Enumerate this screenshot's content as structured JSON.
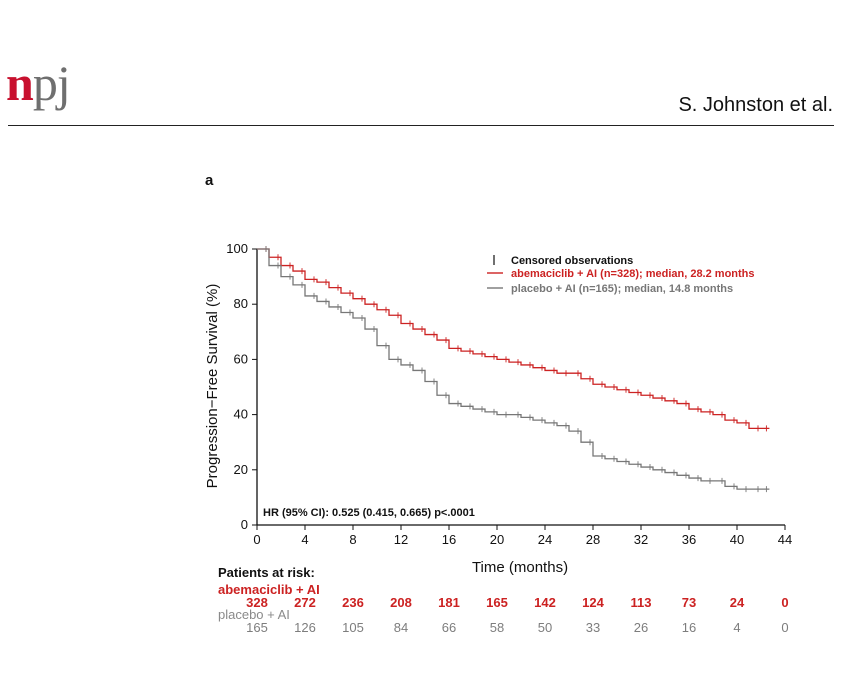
{
  "header": {
    "logo_n": "n",
    "logo_pj": "pj",
    "authors": "S. Johnston et al."
  },
  "panel_label": "a",
  "chart_data": {
    "type": "line",
    "title": "",
    "xlabel": "Time (months)",
    "ylabel": "Progression−Free Survival (%)",
    "xlim": [
      0,
      44
    ],
    "ylim": [
      0,
      100
    ],
    "xticks": [
      0,
      4,
      8,
      12,
      16,
      20,
      24,
      28,
      32,
      36,
      40,
      44
    ],
    "yticks": [
      0,
      20,
      40,
      60,
      80,
      100
    ],
    "grid": false,
    "legend_placement": "top-right",
    "legend": {
      "censor_label": "Censored observations"
    },
    "annotation": "HR (95% CI): 0.525 (0.415, 0.665) p<.0001",
    "series": [
      {
        "name": "abemaciclib + AI (n=328); median, 28.2 months",
        "color": "#cc2222",
        "x": [
          0,
          1,
          2,
          3,
          4,
          5,
          6,
          7,
          8,
          9,
          10,
          11,
          12,
          13,
          14,
          15,
          16,
          17,
          18,
          19,
          20,
          21,
          22,
          23,
          24,
          25,
          26,
          27,
          28,
          29,
          30,
          31,
          32,
          33,
          34,
          35,
          36,
          37,
          38,
          39,
          40,
          41,
          42,
          42.7
        ],
        "y": [
          100,
          97,
          94,
          92,
          89,
          88,
          86,
          84,
          82,
          80,
          78,
          76,
          73,
          71,
          69,
          67,
          64,
          63,
          62,
          61,
          60,
          59,
          58,
          57,
          56,
          55,
          55,
          53,
          51,
          50,
          49,
          48,
          47,
          46,
          45,
          44,
          42,
          41,
          40,
          38,
          37,
          35,
          35,
          35
        ]
      },
      {
        "name": "placebo + AI (n=165); median, 14.8 months",
        "color": "#777777",
        "x": [
          0,
          1,
          2,
          3,
          4,
          5,
          6,
          7,
          8,
          9,
          10,
          11,
          12,
          13,
          14,
          15,
          16,
          17,
          18,
          19,
          20,
          21,
          22,
          23,
          24,
          25,
          26,
          27,
          28,
          29,
          30,
          31,
          32,
          33,
          34,
          35,
          36,
          37,
          38,
          39,
          40,
          41,
          42,
          42.7
        ],
        "y": [
          100,
          94,
          90,
          87,
          83,
          81,
          79,
          77,
          75,
          71,
          65,
          60,
          58,
          56,
          52,
          47,
          44,
          43,
          42,
          41,
          40,
          40,
          39,
          38,
          37,
          36,
          34,
          30,
          25,
          24,
          23,
          22,
          21,
          20,
          19,
          18,
          17,
          16,
          16,
          14,
          13,
          13,
          13,
          13
        ]
      }
    ],
    "risk_table": {
      "title": "Patients at risk:",
      "timepoints": [
        0,
        4,
        8,
        12,
        16,
        20,
        24,
        28,
        32,
        36,
        40,
        44
      ],
      "arms": [
        {
          "label": "abemaciclib + AI",
          "color": "#cc2222",
          "counts": [
            "328",
            "272",
            "236",
            "208",
            "181",
            "165",
            "142",
            "124",
            "113",
            "73",
            "24",
            "0"
          ]
        },
        {
          "label": "placebo + AI",
          "color": "#7d7d7d",
          "counts": [
            "165",
            "126",
            "105",
            "84",
            "66",
            "58",
            "50",
            "33",
            "26",
            "16",
            "4",
            "0"
          ]
        }
      ]
    }
  }
}
